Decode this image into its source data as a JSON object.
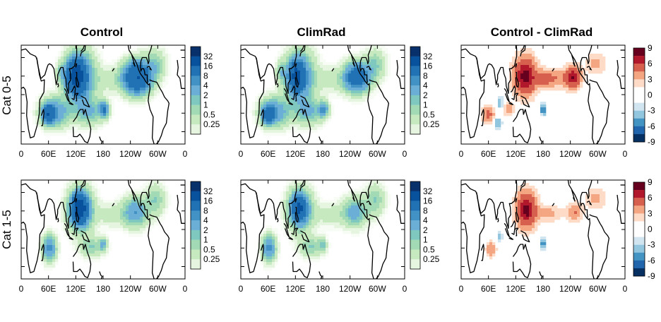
{
  "chart_data": {
    "type": "heatmap",
    "column_titles": [
      "Control",
      "ClimRad",
      "Control - ClimRad"
    ],
    "row_labels": [
      "Cat 0-5",
      "Cat 1-5"
    ],
    "x_tick_labels": [
      "0",
      "60E",
      "120E",
      "180",
      "120W",
      "60W",
      "0"
    ],
    "x_tick_lons": [
      0,
      60,
      120,
      180,
      240,
      300,
      360
    ],
    "lon_range": [
      0,
      360
    ],
    "lat_range": [
      -40,
      40
    ],
    "colorbar_density": {
      "labels": [
        "32",
        "16",
        "8",
        "4",
        "2",
        "1",
        "0.5",
        "0.25"
      ],
      "colors": [
        "#08306b",
        "#08519c",
        "#2171b5",
        "#4292c6",
        "#6baed6",
        "#7fc8c0",
        "#a1dab4",
        "#c7e9c0",
        "#e5f5e0",
        "#f7fcf5"
      ]
    },
    "colorbar_difference": {
      "labels": [
        "9",
        "6",
        "3",
        "0",
        "-3",
        "-6",
        "-9"
      ],
      "colors": [
        "#67001f",
        "#b2182b",
        "#d6604d",
        "#f4a582",
        "#fddbc7",
        "#ffffff",
        "#ffffff",
        "#d1e5f0",
        "#92c5de",
        "#4393c3",
        "#2166ac",
        "#053061"
      ]
    },
    "panels": [
      {
        "row": 0,
        "col": 0,
        "kind": "density",
        "blobs": [
          {
            "lon": 130,
            "lat": 14,
            "rx": 30,
            "ry": 20,
            "v": 8
          },
          {
            "lon": 120,
            "lat": 15,
            "rx": 18,
            "ry": 12,
            "v": 18
          },
          {
            "lon": 255,
            "lat": 14,
            "rx": 28,
            "ry": 12,
            "v": 16
          },
          {
            "lon": 75,
            "lat": -14,
            "rx": 30,
            "ry": 11,
            "v": 6
          },
          {
            "lon": 60,
            "lat": -16,
            "rx": 12,
            "ry": 7,
            "v": 12
          },
          {
            "lon": 150,
            "lat": -14,
            "rx": 30,
            "ry": 10,
            "v": 4
          },
          {
            "lon": 182,
            "lat": -12,
            "rx": 10,
            "ry": 6,
            "v": 8
          },
          {
            "lon": 88,
            "lat": 18,
            "rx": 9,
            "ry": 8,
            "v": 3
          },
          {
            "lon": 295,
            "lat": 24,
            "rx": 22,
            "ry": 12,
            "v": 3
          },
          {
            "lon": 200,
            "lat": 12,
            "rx": 35,
            "ry": 10,
            "v": 1.5
          }
        ]
      },
      {
        "row": 0,
        "col": 1,
        "kind": "density",
        "blobs": [
          {
            "lon": 130,
            "lat": 14,
            "rx": 30,
            "ry": 20,
            "v": 7
          },
          {
            "lon": 122,
            "lat": 15,
            "rx": 16,
            "ry": 11,
            "v": 14
          },
          {
            "lon": 255,
            "lat": 14,
            "rx": 26,
            "ry": 11,
            "v": 12
          },
          {
            "lon": 75,
            "lat": -14,
            "rx": 30,
            "ry": 11,
            "v": 6
          },
          {
            "lon": 60,
            "lat": -16,
            "rx": 12,
            "ry": 7,
            "v": 10
          },
          {
            "lon": 150,
            "lat": -14,
            "rx": 30,
            "ry": 10,
            "v": 4
          },
          {
            "lon": 182,
            "lat": -12,
            "rx": 10,
            "ry": 6,
            "v": 6
          },
          {
            "lon": 88,
            "lat": 18,
            "rx": 9,
            "ry": 8,
            "v": 3
          },
          {
            "lon": 295,
            "lat": 24,
            "rx": 22,
            "ry": 12,
            "v": 3
          },
          {
            "lon": 200,
            "lat": 12,
            "rx": 35,
            "ry": 10,
            "v": 1.5
          }
        ]
      },
      {
        "row": 0,
        "col": 2,
        "kind": "difference",
        "blobs": [
          {
            "lon": 140,
            "lat": 15,
            "rx": 22,
            "ry": 14,
            "v": 9
          },
          {
            "lon": 245,
            "lat": 14,
            "rx": 16,
            "ry": 8,
            "v": 8
          },
          {
            "lon": 190,
            "lat": 13,
            "rx": 35,
            "ry": 7,
            "v": 4
          },
          {
            "lon": 60,
            "lat": -16,
            "rx": 12,
            "ry": 6,
            "v": 4
          },
          {
            "lon": 105,
            "lat": -12,
            "rx": 9,
            "ry": 5,
            "v": 3
          },
          {
            "lon": 295,
            "lat": 25,
            "rx": 20,
            "ry": 8,
            "v": 2
          },
          {
            "lon": 180,
            "lat": -12,
            "rx": 5,
            "ry": 4,
            "v": -6
          },
          {
            "lon": 85,
            "lat": -6,
            "rx": 6,
            "ry": 4,
            "v": -3
          },
          {
            "lon": 80,
            "lat": -23,
            "rx": 8,
            "ry": 4,
            "v": -3
          }
        ]
      },
      {
        "row": 1,
        "col": 0,
        "kind": "density",
        "blobs": [
          {
            "lon": 130,
            "lat": 16,
            "rx": 26,
            "ry": 16,
            "v": 8
          },
          {
            "lon": 128,
            "lat": 17,
            "rx": 15,
            "ry": 10,
            "v": 18
          },
          {
            "lon": 250,
            "lat": 14,
            "rx": 26,
            "ry": 11,
            "v": 6
          },
          {
            "lon": 62,
            "lat": -15,
            "rx": 14,
            "ry": 10,
            "v": 7
          },
          {
            "lon": 155,
            "lat": -14,
            "rx": 25,
            "ry": 8,
            "v": 3
          },
          {
            "lon": 180,
            "lat": -12,
            "rx": 8,
            "ry": 5,
            "v": 4
          },
          {
            "lon": 295,
            "lat": 24,
            "rx": 20,
            "ry": 12,
            "v": 3
          },
          {
            "lon": 195,
            "lat": 12,
            "rx": 30,
            "ry": 9,
            "v": 1.5
          }
        ]
      },
      {
        "row": 1,
        "col": 1,
        "kind": "density",
        "blobs": [
          {
            "lon": 130,
            "lat": 16,
            "rx": 26,
            "ry": 16,
            "v": 7
          },
          {
            "lon": 128,
            "lat": 17,
            "rx": 14,
            "ry": 9,
            "v": 12
          },
          {
            "lon": 250,
            "lat": 14,
            "rx": 26,
            "ry": 11,
            "v": 5
          },
          {
            "lon": 62,
            "lat": -15,
            "rx": 14,
            "ry": 10,
            "v": 7
          },
          {
            "lon": 155,
            "lat": -14,
            "rx": 25,
            "ry": 8,
            "v": 3
          },
          {
            "lon": 180,
            "lat": -12,
            "rx": 8,
            "ry": 5,
            "v": 3
          },
          {
            "lon": 295,
            "lat": 24,
            "rx": 20,
            "ry": 12,
            "v": 3
          },
          {
            "lon": 195,
            "lat": 12,
            "rx": 30,
            "ry": 9,
            "v": 1.5
          }
        ]
      },
      {
        "row": 1,
        "col": 2,
        "kind": "difference",
        "blobs": [
          {
            "lon": 143,
            "lat": 16,
            "rx": 20,
            "ry": 13,
            "v": 9
          },
          {
            "lon": 250,
            "lat": 14,
            "rx": 16,
            "ry": 7,
            "v": 3
          },
          {
            "lon": 190,
            "lat": 13,
            "rx": 30,
            "ry": 6,
            "v": 2
          },
          {
            "lon": 65,
            "lat": -16,
            "rx": 10,
            "ry": 6,
            "v": 3
          },
          {
            "lon": 295,
            "lat": 25,
            "rx": 20,
            "ry": 8,
            "v": 2
          },
          {
            "lon": 180,
            "lat": -12,
            "rx": 5,
            "ry": 4,
            "v": -5
          },
          {
            "lon": 85,
            "lat": -6,
            "rx": 5,
            "ry": 3,
            "v": -3
          }
        ]
      }
    ]
  }
}
